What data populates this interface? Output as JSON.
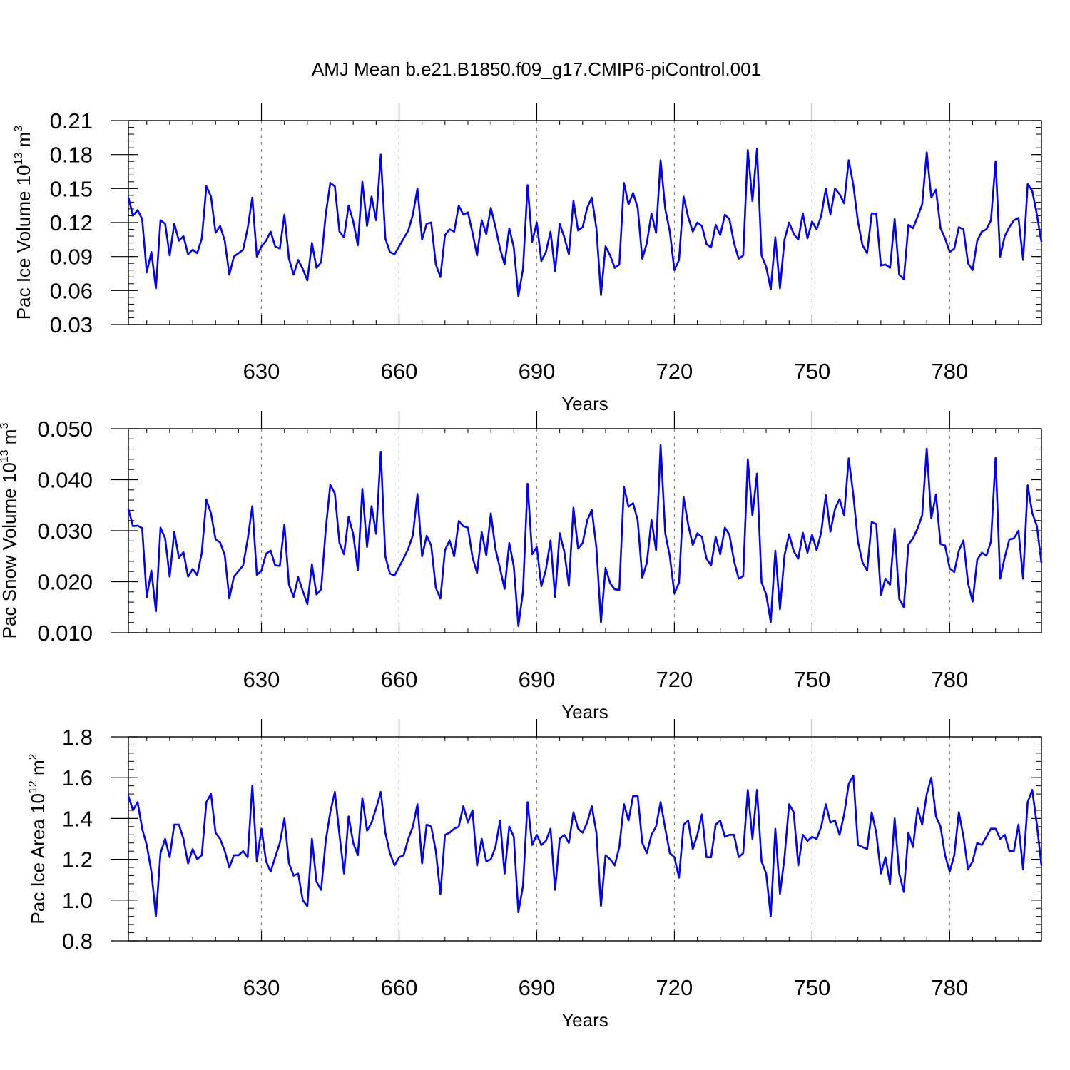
{
  "title": "AMJ Mean b.e21.B1850.f09_g17.CMIP6-piControl.001",
  "chart_data": [
    {
      "type": "line",
      "ylabel": "Pac Ice Volume 10",
      "ylabel_exp": "13",
      "ylabel_unit": "m",
      "ylabel_unit_exp": "3",
      "xlabel": "Years",
      "xlim": [
        601,
        800
      ],
      "ylim": [
        0.03,
        0.21
      ],
      "yticks": [
        0.03,
        0.06,
        0.09,
        0.12,
        0.15,
        0.18,
        0.21
      ],
      "ytick_labels": [
        "0.03",
        "0.06",
        "0.09",
        "0.12",
        "0.15",
        "0.18",
        "0.21"
      ],
      "xticks": [
        630,
        660,
        690,
        720,
        750,
        780
      ],
      "xtick_labels": [
        "630",
        "660",
        "690",
        "720",
        "750",
        "780"
      ],
      "color": "#0000ff",
      "x_start": 601,
      "values": [
        0.142,
        0.126,
        0.131,
        0.123,
        0.076,
        0.094,
        0.062,
        0.122,
        0.119,
        0.091,
        0.119,
        0.104,
        0.108,
        0.092,
        0.096,
        0.093,
        0.106,
        0.152,
        0.143,
        0.111,
        0.117,
        0.104,
        0.074,
        0.09,
        0.093,
        0.096,
        0.115,
        0.142,
        0.09,
        0.099,
        0.104,
        0.112,
        0.099,
        0.097,
        0.127,
        0.088,
        0.074,
        0.087,
        0.079,
        0.069,
        0.102,
        0.08,
        0.085,
        0.127,
        0.155,
        0.152,
        0.112,
        0.107,
        0.135,
        0.121,
        0.1,
        0.156,
        0.117,
        0.143,
        0.122,
        0.18,
        0.106,
        0.094,
        0.092,
        0.099,
        0.106,
        0.113,
        0.127,
        0.15,
        0.105,
        0.119,
        0.12,
        0.083,
        0.072,
        0.109,
        0.114,
        0.112,
        0.135,
        0.127,
        0.129,
        0.111,
        0.091,
        0.122,
        0.11,
        0.133,
        0.116,
        0.097,
        0.083,
        0.115,
        0.098,
        0.055,
        0.079,
        0.153,
        0.103,
        0.12,
        0.086,
        0.094,
        0.112,
        0.077,
        0.119,
        0.107,
        0.092,
        0.139,
        0.113,
        0.116,
        0.133,
        0.142,
        0.115,
        0.056,
        0.099,
        0.091,
        0.08,
        0.083,
        0.155,
        0.136,
        0.146,
        0.133,
        0.088,
        0.102,
        0.128,
        0.111,
        0.175,
        0.132,
        0.112,
        0.078,
        0.087,
        0.143,
        0.125,
        0.112,
        0.12,
        0.117,
        0.101,
        0.098,
        0.118,
        0.109,
        0.127,
        0.123,
        0.102,
        0.088,
        0.091,
        0.184,
        0.139,
        0.185,
        0.091,
        0.081,
        0.061,
        0.107,
        0.062,
        0.105,
        0.12,
        0.11,
        0.105,
        0.128,
        0.106,
        0.121,
        0.114,
        0.126,
        0.15,
        0.127,
        0.15,
        0.145,
        0.137,
        0.175,
        0.153,
        0.121,
        0.1,
        0.093,
        0.128,
        0.128,
        0.082,
        0.083,
        0.08,
        0.123,
        0.074,
        0.07,
        0.118,
        0.115,
        0.125,
        0.136,
        0.182,
        0.142,
        0.149,
        0.115,
        0.106,
        0.094,
        0.097,
        0.116,
        0.114,
        0.084,
        0.078,
        0.104,
        0.112,
        0.114,
        0.122,
        0.174,
        0.09,
        0.108,
        0.116,
        0.122,
        0.124,
        0.087,
        0.154,
        0.148,
        0.127,
        0.103
      ]
    },
    {
      "type": "line",
      "ylabel": "Pac Snow Volume 10",
      "ylabel_exp": "13",
      "ylabel_unit": "m",
      "ylabel_unit_exp": "3",
      "xlabel": "Years",
      "xlim": [
        601,
        800
      ],
      "ylim": [
        0.01,
        0.05
      ],
      "yticks": [
        0.01,
        0.02,
        0.03,
        0.04,
        0.05
      ],
      "ytick_labels": [
        "0.010",
        "0.020",
        "0.030",
        "0.040",
        "0.050"
      ],
      "xticks": [
        630,
        660,
        690,
        720,
        750,
        780
      ],
      "xtick_labels": [
        "630",
        "660",
        "690",
        "720",
        "750",
        "780"
      ],
      "color": "#0000ff",
      "x_start": 601,
      "values": [
        0.0342,
        0.0309,
        0.031,
        0.0305,
        0.017,
        0.0222,
        0.0142,
        0.0306,
        0.0285,
        0.021,
        0.0298,
        0.0247,
        0.0258,
        0.021,
        0.0225,
        0.0213,
        0.0257,
        0.0361,
        0.0334,
        0.0283,
        0.0277,
        0.0252,
        0.0167,
        0.021,
        0.0221,
        0.0232,
        0.0283,
        0.0348,
        0.0213,
        0.0222,
        0.0255,
        0.0261,
        0.0232,
        0.0231,
        0.0312,
        0.0194,
        0.017,
        0.0209,
        0.0182,
        0.0156,
        0.0234,
        0.0175,
        0.0185,
        0.0302,
        0.039,
        0.0373,
        0.0276,
        0.0254,
        0.0327,
        0.0293,
        0.0223,
        0.0382,
        0.0268,
        0.0348,
        0.0294,
        0.0455,
        0.025,
        0.0216,
        0.0212,
        0.0229,
        0.0246,
        0.0265,
        0.0291,
        0.0372,
        0.025,
        0.029,
        0.0271,
        0.0188,
        0.0167,
        0.0262,
        0.0281,
        0.025,
        0.0319,
        0.0309,
        0.0306,
        0.0248,
        0.0217,
        0.0297,
        0.0252,
        0.0334,
        0.0264,
        0.0226,
        0.0186,
        0.0276,
        0.023,
        0.0113,
        0.0181,
        0.0392,
        0.0254,
        0.0268,
        0.0191,
        0.0224,
        0.0281,
        0.017,
        0.0295,
        0.0259,
        0.0192,
        0.0345,
        0.0265,
        0.0276,
        0.032,
        0.0341,
        0.0267,
        0.012,
        0.0227,
        0.0197,
        0.0185,
        0.0184,
        0.0386,
        0.0347,
        0.0354,
        0.032,
        0.0208,
        0.0237,
        0.0321,
        0.0262,
        0.0468,
        0.0295,
        0.025,
        0.0177,
        0.0198,
        0.0366,
        0.0312,
        0.0272,
        0.0295,
        0.0288,
        0.0245,
        0.0232,
        0.0288,
        0.0254,
        0.0306,
        0.0292,
        0.0241,
        0.0206,
        0.0211,
        0.044,
        0.033,
        0.0412,
        0.0199,
        0.0175,
        0.0121,
        0.0261,
        0.0146,
        0.0252,
        0.0293,
        0.026,
        0.0245,
        0.0296,
        0.0257,
        0.0292,
        0.0262,
        0.0297,
        0.037,
        0.0298,
        0.0343,
        0.0362,
        0.033,
        0.0442,
        0.037,
        0.0279,
        0.0238,
        0.0222,
        0.0317,
        0.0313,
        0.0174,
        0.0206,
        0.0194,
        0.0304,
        0.0166,
        0.015,
        0.0273,
        0.0285,
        0.0304,
        0.033,
        0.0461,
        0.0324,
        0.0371,
        0.0274,
        0.0271,
        0.0226,
        0.0219,
        0.0261,
        0.0281,
        0.0197,
        0.0161,
        0.0243,
        0.0257,
        0.0251,
        0.0279,
        0.0443,
        0.0206,
        0.0248,
        0.0283,
        0.0285,
        0.03,
        0.0206,
        0.0389,
        0.0335,
        0.0309,
        0.0237
      ]
    },
    {
      "type": "line",
      "ylabel": "Pac Ice Area 10",
      "ylabel_exp": "12",
      "ylabel_unit": "m",
      "ylabel_unit_exp": "2",
      "xlabel": "Years",
      "xlim": [
        601,
        800
      ],
      "ylim": [
        0.8,
        1.8
      ],
      "yticks": [
        0.8,
        1.0,
        1.2,
        1.4,
        1.6,
        1.8
      ],
      "ytick_labels": [
        "0.8",
        "1.0",
        "1.2",
        "1.4",
        "1.6",
        "1.8"
      ],
      "xticks": [
        630,
        660,
        690,
        720,
        750,
        780
      ],
      "xtick_labels": [
        "630",
        "660",
        "690",
        "720",
        "750",
        "780"
      ],
      "color": "#0000ff",
      "x_start": 601,
      "values": [
        1.51,
        1.44,
        1.48,
        1.35,
        1.27,
        1.14,
        0.92,
        1.23,
        1.3,
        1.21,
        1.37,
        1.37,
        1.3,
        1.18,
        1.25,
        1.2,
        1.22,
        1.48,
        1.52,
        1.33,
        1.3,
        1.24,
        1.16,
        1.22,
        1.22,
        1.24,
        1.21,
        1.56,
        1.19,
        1.35,
        1.19,
        1.14,
        1.21,
        1.28,
        1.4,
        1.18,
        1.12,
        1.13,
        1.0,
        0.97,
        1.3,
        1.09,
        1.05,
        1.29,
        1.43,
        1.53,
        1.32,
        1.13,
        1.41,
        1.28,
        1.22,
        1.5,
        1.34,
        1.38,
        1.45,
        1.53,
        1.33,
        1.23,
        1.17,
        1.21,
        1.22,
        1.3,
        1.36,
        1.47,
        1.18,
        1.37,
        1.36,
        1.24,
        1.03,
        1.32,
        1.33,
        1.35,
        1.36,
        1.46,
        1.38,
        1.44,
        1.17,
        1.3,
        1.19,
        1.2,
        1.26,
        1.39,
        1.13,
        1.36,
        1.31,
        0.94,
        1.07,
        1.48,
        1.27,
        1.32,
        1.27,
        1.29,
        1.35,
        1.05,
        1.3,
        1.32,
        1.28,
        1.43,
        1.35,
        1.33,
        1.38,
        1.46,
        1.33,
        0.97,
        1.22,
        1.2,
        1.17,
        1.26,
        1.47,
        1.39,
        1.51,
        1.51,
        1.28,
        1.23,
        1.32,
        1.36,
        1.48,
        1.35,
        1.23,
        1.21,
        1.11,
        1.37,
        1.39,
        1.25,
        1.32,
        1.42,
        1.21,
        1.21,
        1.37,
        1.39,
        1.31,
        1.32,
        1.32,
        1.21,
        1.23,
        1.54,
        1.3,
        1.54,
        1.19,
        1.13,
        0.92,
        1.35,
        1.03,
        1.21,
        1.47,
        1.43,
        1.17,
        1.32,
        1.29,
        1.31,
        1.3,
        1.36,
        1.47,
        1.38,
        1.39,
        1.32,
        1.42,
        1.57,
        1.61,
        1.27,
        1.26,
        1.25,
        1.43,
        1.33,
        1.13,
        1.21,
        1.08,
        1.4,
        1.13,
        1.04,
        1.33,
        1.26,
        1.45,
        1.37,
        1.52,
        1.6,
        1.41,
        1.36,
        1.22,
        1.14,
        1.22,
        1.43,
        1.31,
        1.15,
        1.19,
        1.28,
        1.27,
        1.31,
        1.35,
        1.35,
        1.3,
        1.32,
        1.24,
        1.24,
        1.37,
        1.15,
        1.48,
        1.54,
        1.37,
        1.17
      ]
    }
  ]
}
